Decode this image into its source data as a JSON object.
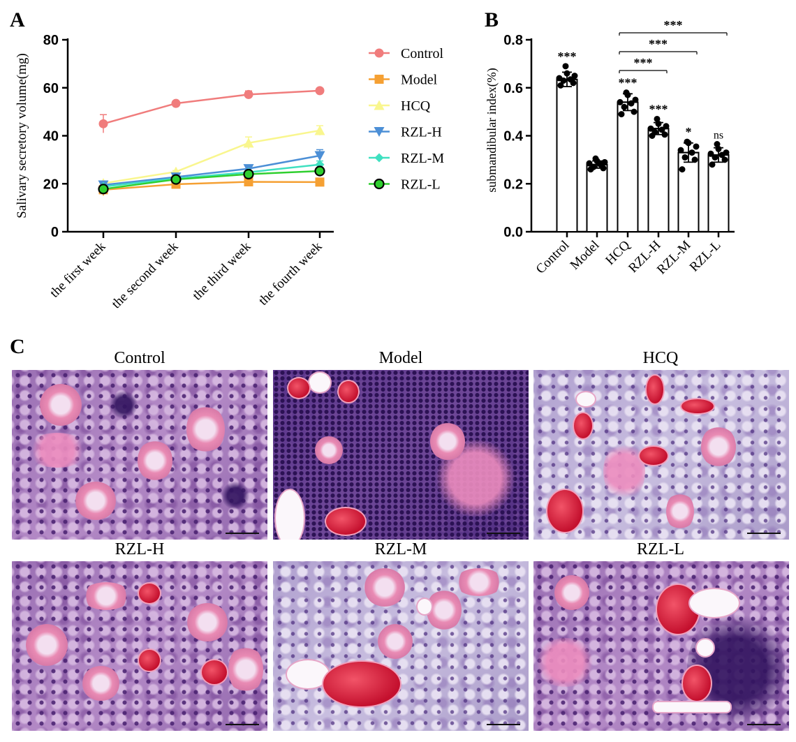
{
  "panels": {
    "a": "A",
    "b": "B",
    "c": "C"
  },
  "chart_data": [
    {
      "type": "line",
      "ylabel": "Salivary secretory volume(mg)",
      "xlabel": "",
      "ylim": [
        0,
        80
      ],
      "yticks": [
        0,
        20,
        40,
        60,
        80
      ],
      "categories": [
        "the first week",
        "the second week",
        "the third week",
        "the fourth week"
      ],
      "series": [
        {
          "name": "Control",
          "color": "#f07c7c",
          "marker": "circle",
          "values": [
            45,
            53.5,
            57.2,
            58.8
          ],
          "errors": [
            3.8,
            0.5,
            1.5,
            0.5
          ]
        },
        {
          "name": "Model",
          "color": "#f5a033",
          "marker": "square",
          "values": [
            17.5,
            19.8,
            20.8,
            20.7
          ],
          "errors": [
            2.5,
            0.5,
            0.5,
            0.5
          ]
        },
        {
          "name": "HCQ",
          "color": "#f9f68e",
          "marker": "triangle-up",
          "values": [
            20.2,
            25,
            37,
            42.2
          ],
          "errors": [
            0.8,
            0.5,
            2.5,
            2.0
          ]
        },
        {
          "name": "RZL-H",
          "color": "#4c8fd6",
          "marker": "triangle-down",
          "values": [
            19.5,
            22.8,
            26.3,
            31.7
          ],
          "errors": [
            0.8,
            0.5,
            1.5,
            2.5
          ]
        },
        {
          "name": "RZL-M",
          "color": "#3fe0c0",
          "marker": "diamond",
          "values": [
            18.8,
            22.2,
            24.8,
            28
          ],
          "errors": [
            0.5,
            0.5,
            0.8,
            1.5
          ]
        },
        {
          "name": "RZL-L",
          "color": "#2fcf2f",
          "marker": "circle-black",
          "values": [
            17.8,
            21.8,
            24,
            25.3
          ],
          "errors": [
            0.5,
            0.5,
            0.8,
            0.8
          ]
        }
      ],
      "legend": "right"
    },
    {
      "type": "bar",
      "ylabel": "submandibular index(%)",
      "xlabel": "",
      "ylim": [
        0,
        0.8
      ],
      "yticks": [
        "0.0",
        "0.2",
        "0.4",
        "0.6",
        "0.8"
      ],
      "categories": [
        "Control",
        "Model",
        "HCQ",
        "RZL-H",
        "RZL-M",
        "RZL-L"
      ],
      "values": [
        0.635,
        0.28,
        0.54,
        0.43,
        0.33,
        0.32
      ],
      "errors": [
        0.03,
        0.015,
        0.035,
        0.025,
        0.04,
        0.03
      ],
      "points": [
        [
          0.61,
          0.62,
          0.63,
          0.635,
          0.64,
          0.65,
          0.66,
          0.69
        ],
        [
          0.26,
          0.265,
          0.27,
          0.28,
          0.285,
          0.29,
          0.295,
          0.305
        ],
        [
          0.49,
          0.5,
          0.52,
          0.535,
          0.54,
          0.55,
          0.57,
          0.58
        ],
        [
          0.4,
          0.405,
          0.415,
          0.425,
          0.43,
          0.44,
          0.45,
          0.47
        ],
        [
          0.26,
          0.3,
          0.31,
          0.33,
          0.34,
          0.355,
          0.37,
          0.375
        ],
        [
          0.28,
          0.3,
          0.31,
          0.32,
          0.325,
          0.33,
          0.345,
          0.365
        ]
      ],
      "annotations": [
        "***",
        "",
        "***",
        "***",
        "*",
        "ns"
      ],
      "brackets": [
        {
          "from": "HCQ",
          "to": "RZL-H",
          "label": "***"
        },
        {
          "from": "HCQ",
          "to": "RZL-M",
          "label": "***"
        },
        {
          "from": "HCQ",
          "to": "RZL-L",
          "label": "***"
        }
      ]
    }
  ],
  "histology": [
    {
      "title": "Control",
      "texture": "normal"
    },
    {
      "title": "Model",
      "texture": "inflamed"
    },
    {
      "title": "HCQ",
      "texture": "pale"
    },
    {
      "title": "RZL-H",
      "texture": "normal"
    },
    {
      "title": "RZL-M",
      "texture": "pale"
    },
    {
      "title": "RZL-L",
      "texture": "mixed"
    }
  ]
}
